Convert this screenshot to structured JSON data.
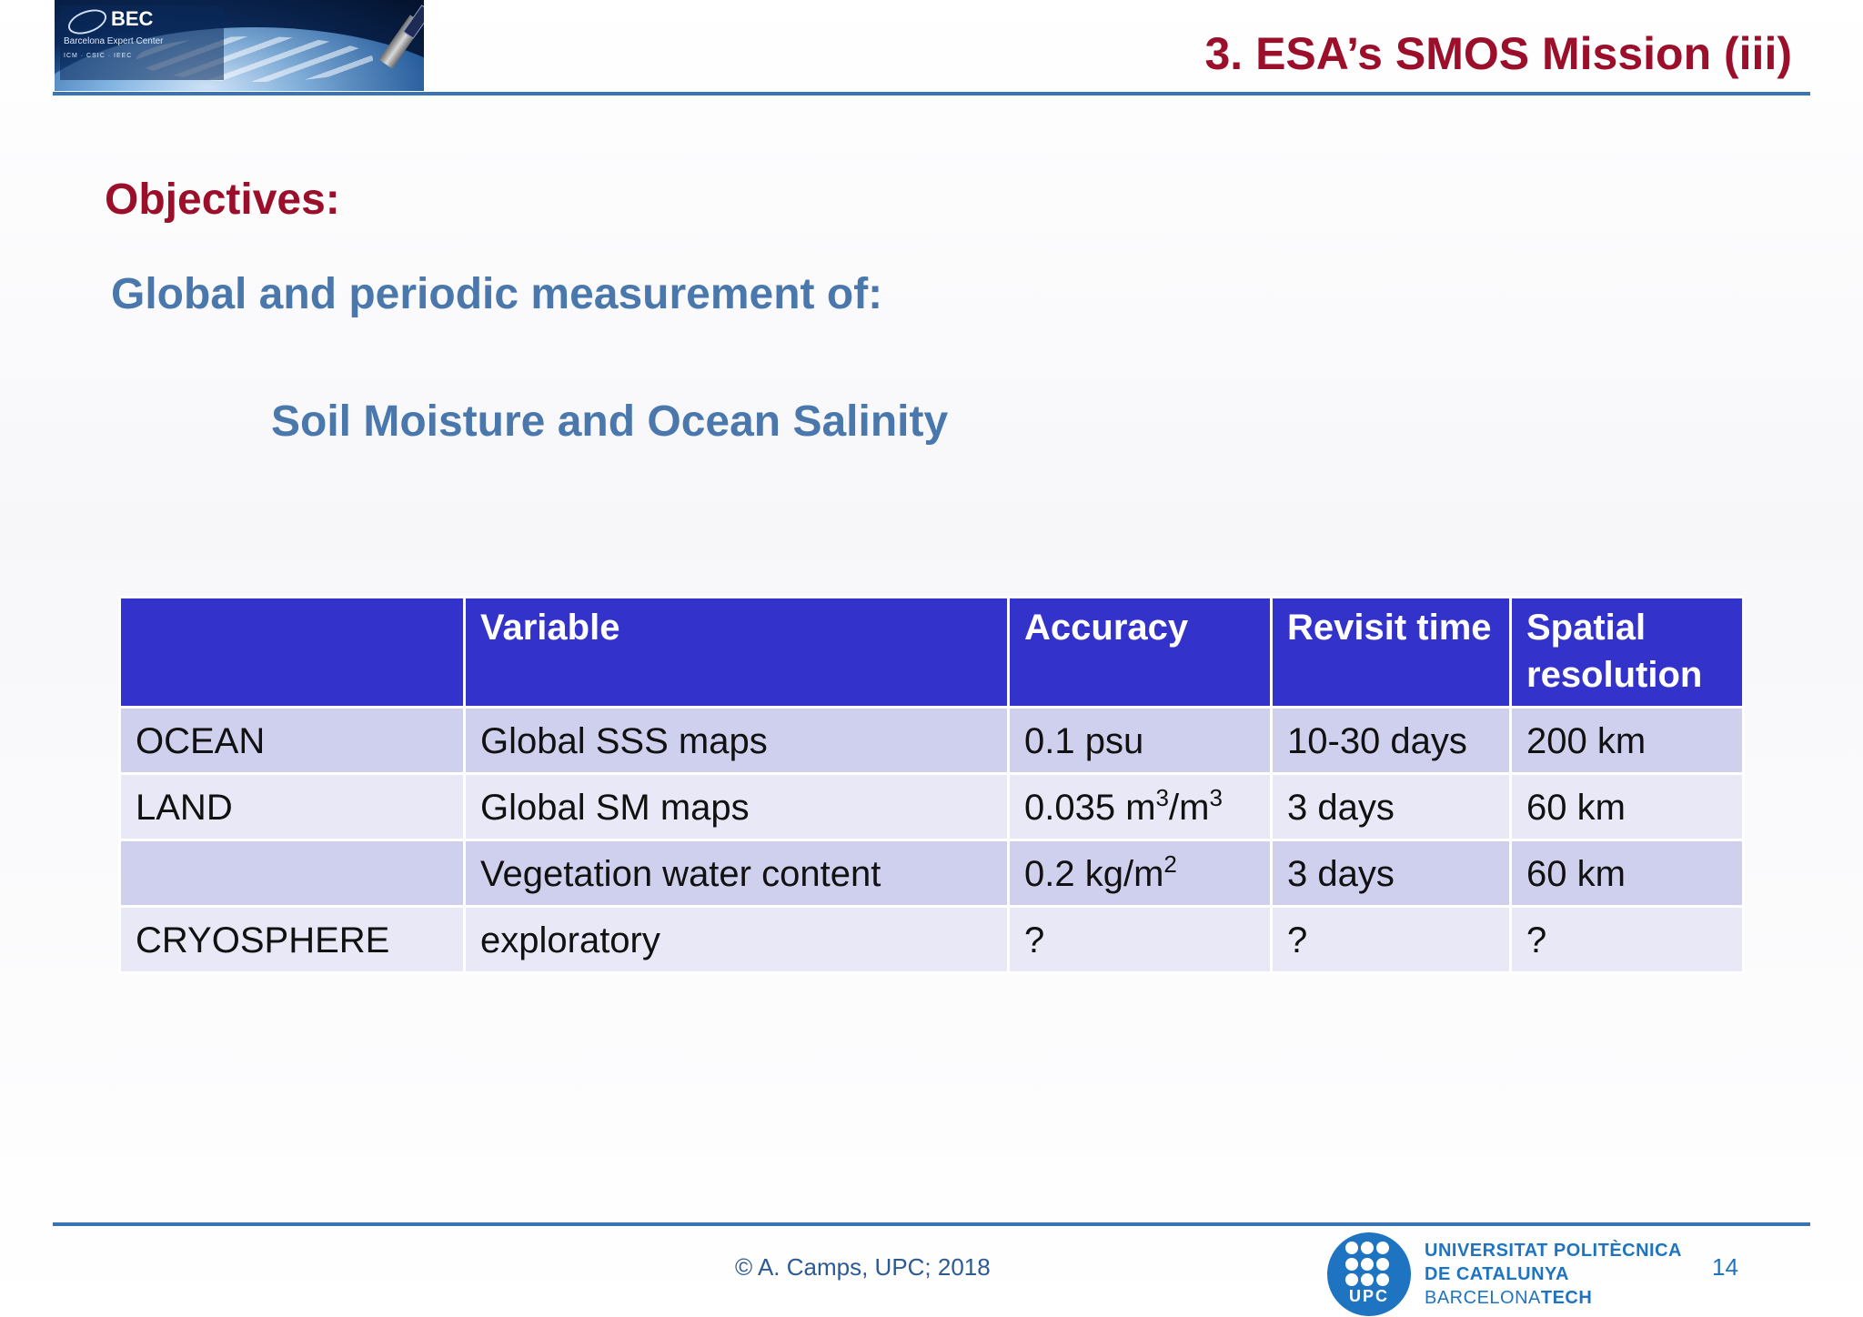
{
  "header": {
    "logo": {
      "name": "BEC",
      "subtitle": "Barcelona Expert Center",
      "partners": "ICM · CSIC · IEEC"
    },
    "title": "3. ESA’s SMOS Mission (iii)"
  },
  "content": {
    "heading": "Objectives:",
    "subheading": "Global and periodic measurement of:",
    "target": "Soil Moisture and Ocean Salinity"
  },
  "table": {
    "headers": [
      "",
      "Variable",
      "Accuracy",
      "Revisit time",
      "Spatial resolution"
    ],
    "rows": [
      {
        "domain": "OCEAN",
        "variable": "Global SSS maps",
        "accuracy": "0.1 psu",
        "revisit": "10-30 days",
        "resolution": "200 km"
      },
      {
        "domain": "LAND",
        "variable": "Global SM maps",
        "accuracy": "0.035 m³/m³",
        "accuracy_base": "0.035 m",
        "accuracy_sup1": "3",
        "accuracy_mid": "/m",
        "accuracy_sup2": "3",
        "revisit": "3 days",
        "resolution": "60 km"
      },
      {
        "domain": "",
        "variable": "Vegetation water content",
        "accuracy": "0.2 kg/m²",
        "accuracy_base": "0.2 kg/m",
        "accuracy_sup1": "2",
        "revisit": "3 days",
        "resolution": "60 km"
      },
      {
        "domain": "CRYOSPHERE",
        "variable": "exploratory",
        "accuracy": "?",
        "revisit": "?",
        "resolution": "?"
      }
    ]
  },
  "footer": {
    "copyright": "© A. Camps, UPC; 2018",
    "university": {
      "logo_text": "UPC",
      "line1": "UNIVERSITAT POLITÈCNICA",
      "line2": "DE CATALUNYA",
      "line3_prefix": "BARCELONA",
      "line3_suffix": "TECH"
    },
    "page_number": "14"
  },
  "colors": {
    "title_red": "#9b0f2a",
    "subheading_blue": "#4a78ad",
    "rule_blue": "#3a73b4",
    "table_header": "#3333cc",
    "row_dark": "#cfcfee",
    "row_light": "#e8e8f6",
    "upc_blue": "#1f74c2"
  }
}
